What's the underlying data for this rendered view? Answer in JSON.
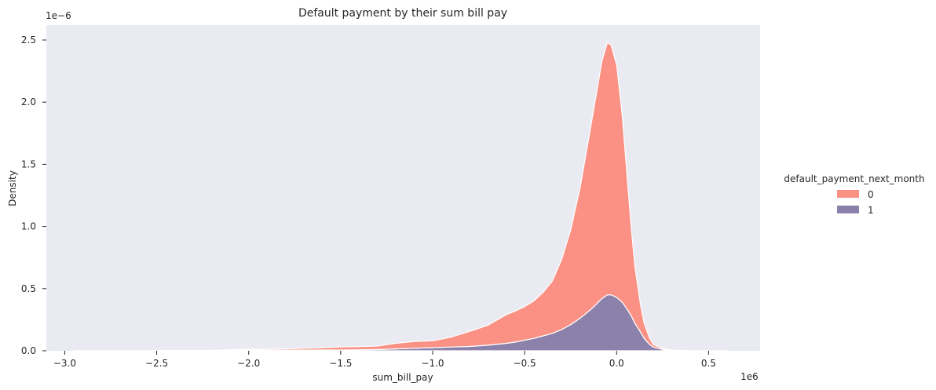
{
  "chart_data": {
    "type": "area",
    "title": "Default payment by their sum bill pay",
    "xlabel": "sum_bill_pay",
    "ylabel": "Density",
    "x_offset_label": "1e6",
    "y_offset_label": "1e−6",
    "xlim": [
      -3.1,
      0.78
    ],
    "ylim": [
      0,
      2.62
    ],
    "x_ticks": [
      -3.0,
      -2.5,
      -2.0,
      -1.5,
      -1.0,
      -0.5,
      0.0,
      0.5
    ],
    "x_tick_labels": [
      "−3.0",
      "−2.5",
      "−2.0",
      "−1.5",
      "−1.0",
      "−0.5",
      "0.0",
      "0.5"
    ],
    "y_ticks": [
      0.0,
      0.5,
      1.0,
      1.5,
      2.0,
      2.5
    ],
    "y_tick_labels": [
      "0.0",
      "0.5",
      "1.0",
      "1.5",
      "2.0",
      "2.5"
    ],
    "grid": false,
    "stacked": true,
    "legend": {
      "title": "default_payment_next_month",
      "placement": "right",
      "entries": [
        {
          "label": "0",
          "color": "#fa9184"
        },
        {
          "label": "1",
          "color": "#8c81aa"
        }
      ]
    },
    "x": [
      -2.95,
      -2.5,
      -2.2,
      -2.0,
      -1.8,
      -1.6,
      -1.5,
      -1.4,
      -1.3,
      -1.2,
      -1.1,
      -1.0,
      -0.9,
      -0.8,
      -0.7,
      -0.6,
      -0.55,
      -0.5,
      -0.45,
      -0.4,
      -0.35,
      -0.3,
      -0.25,
      -0.2,
      -0.15,
      -0.12,
      -0.1,
      -0.08,
      -0.05,
      -0.03,
      0.0,
      0.03,
      0.05,
      0.08,
      0.1,
      0.13,
      0.15,
      0.18,
      0.2,
      0.25,
      0.3,
      0.4,
      0.6
    ],
    "series": [
      {
        "name": "1",
        "color": "#8c81aa",
        "values": [
          0.0,
          0.0,
          0.0,
          0.005,
          0.005,
          0.006,
          0.006,
          0.008,
          0.01,
          0.015,
          0.02,
          0.025,
          0.03,
          0.035,
          0.045,
          0.06,
          0.07,
          0.085,
          0.1,
          0.12,
          0.14,
          0.17,
          0.21,
          0.26,
          0.32,
          0.36,
          0.39,
          0.42,
          0.45,
          0.45,
          0.43,
          0.39,
          0.35,
          0.28,
          0.22,
          0.15,
          0.1,
          0.05,
          0.03,
          0.01,
          0.003,
          0.0,
          0.0
        ]
      },
      {
        "name": "0",
        "color": "#fa9184",
        "values": [
          0.002,
          0.002,
          0.003,
          0.007,
          0.01,
          0.018,
          0.025,
          0.025,
          0.028,
          0.045,
          0.055,
          0.055,
          0.08,
          0.12,
          0.16,
          0.23,
          0.25,
          0.27,
          0.3,
          0.35,
          0.42,
          0.56,
          0.76,
          1.04,
          1.4,
          1.62,
          1.76,
          1.91,
          2.03,
          2.01,
          1.87,
          1.51,
          1.18,
          0.7,
          0.45,
          0.22,
          0.12,
          0.05,
          0.02,
          0.008,
          0.003,
          0.0,
          0.0
        ]
      }
    ]
  }
}
